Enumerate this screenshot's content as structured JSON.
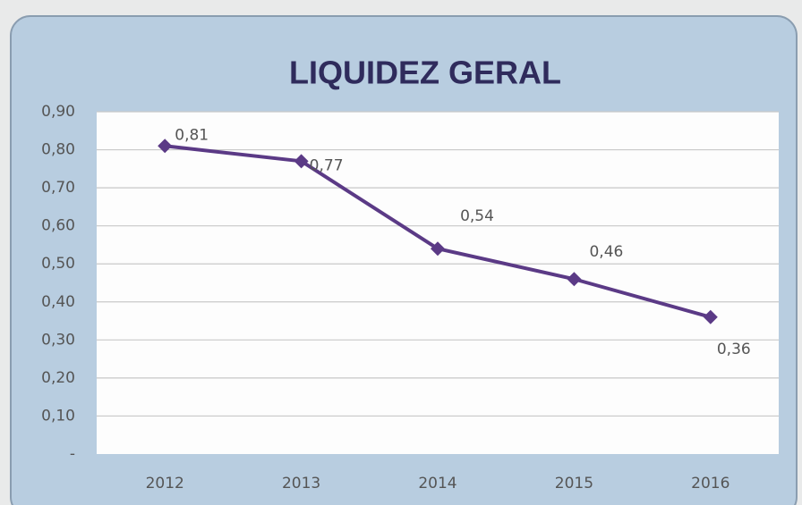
{
  "chart_data": {
    "type": "line",
    "title": "LIQUIDEZ GERAL",
    "categories": [
      "2012",
      "2013",
      "2014",
      "2015",
      "2016"
    ],
    "series": [
      {
        "name": "Liquidez Geral",
        "color": "#5b3a86",
        "values": [
          0.81,
          0.77,
          0.54,
          0.46,
          0.36
        ],
        "value_labels": [
          "0,81",
          "0,77",
          "0,54",
          "0,46",
          "0,36"
        ]
      }
    ],
    "ylim": [
      0,
      0.9
    ],
    "yticks": [
      {
        "value": 0,
        "label": "-"
      },
      {
        "value": 0.1,
        "label": "0,10"
      },
      {
        "value": 0.2,
        "label": "0,20"
      },
      {
        "value": 0.3,
        "label": "0,30"
      },
      {
        "value": 0.4,
        "label": "0,40"
      },
      {
        "value": 0.5,
        "label": "0,50"
      },
      {
        "value": 0.6,
        "label": "0,60"
      },
      {
        "value": 0.7,
        "label": "0,70"
      },
      {
        "value": 0.8,
        "label": "0,80"
      },
      {
        "value": 0.9,
        "label": "0,90"
      }
    ],
    "grid": true
  }
}
